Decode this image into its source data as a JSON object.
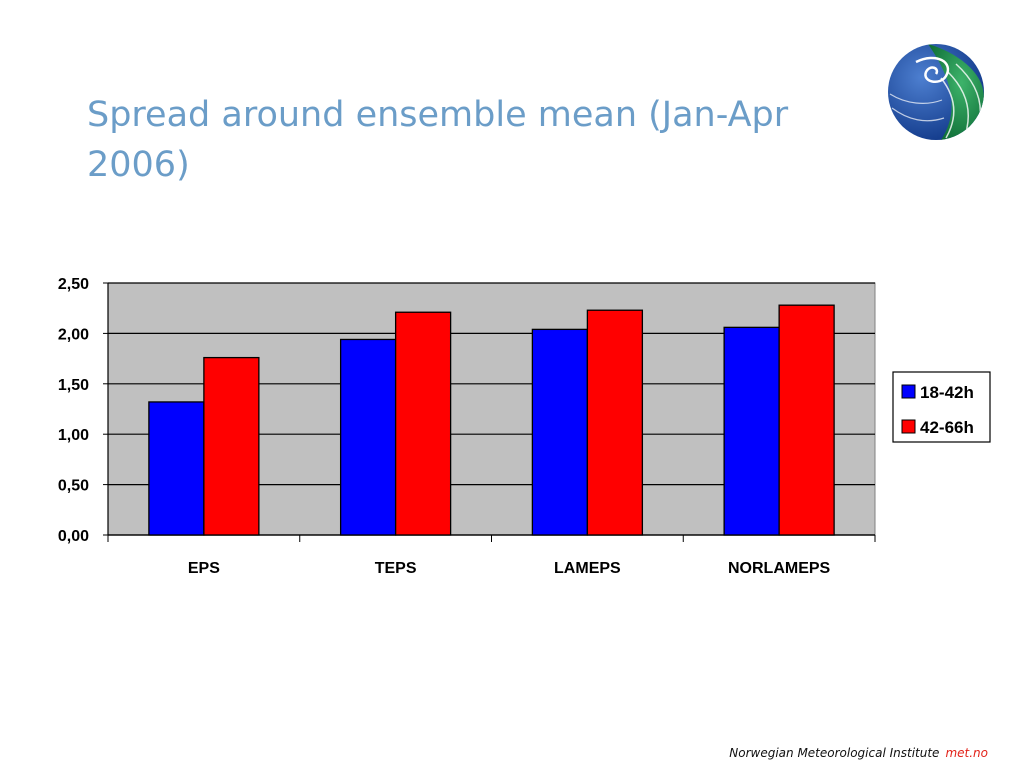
{
  "slide": {
    "title": "Spread around ensemble mean (Jan-Apr 2006)"
  },
  "footer": {
    "institute": "Norwegian Meteorological Institute",
    "brand": "met.no"
  },
  "colors": {
    "title": "#6b9dc8",
    "plot_background": "#c0c0c0",
    "series_18_42h": "#0000ff",
    "series_42_66h": "#ff0000",
    "brand_red": "#e2231a"
  },
  "logo": {
    "icon": "met-no-globe-logo"
  },
  "chart_data": {
    "type": "bar",
    "title": "",
    "xlabel": "",
    "ylabel": "",
    "categories": [
      "EPS",
      "TEPS",
      "LAMEPS",
      "NORLAMEPS"
    ],
    "series": [
      {
        "name": "18-42h",
        "values": [
          1.32,
          1.94,
          2.04,
          2.06
        ],
        "color": "#0000ff"
      },
      {
        "name": "42-66h",
        "values": [
          1.76,
          2.21,
          2.23,
          2.28
        ],
        "color": "#ff0000"
      }
    ],
    "ylim": [
      0,
      2.5
    ],
    "yticks": [
      "0,00",
      "0,50",
      "1,00",
      "1,50",
      "2,00",
      "2,50"
    ],
    "grid": true,
    "legend_position": "right"
  }
}
